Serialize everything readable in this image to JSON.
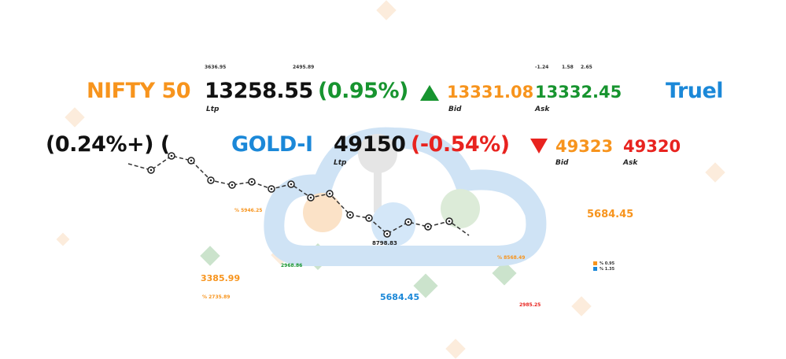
{
  "colors": {
    "orange": "#f7941d",
    "green": "#17942f",
    "red": "#e8231f",
    "blue": "#1b88d8",
    "black": "#111111"
  },
  "row1": {
    "top_numbers": [
      "3636.95",
      "2495.89",
      "-1.24",
      "1.58",
      "2.65"
    ],
    "symbol": "NIFTY 50",
    "ltp": "13258.55",
    "change": "(0.95%)",
    "direction_icon": "triangle-up-icon",
    "bid": "13331.08",
    "ask": "13332.45",
    "ltp_label": "Ltp",
    "bid_label": "Bid",
    "ask_label": "Ask",
    "next_symbol": "Truel"
  },
  "row2": {
    "prev_change": ") (+0.24%)",
    "symbol": "GOLD-I",
    "ltp": "49150",
    "change": "(-0.54%)",
    "direction_icon": "triangle-down-icon",
    "bid": "49323",
    "ask": "49320",
    "ltp_label": "Ltp",
    "bid_label": "Bid",
    "ask_label": "Ask"
  },
  "floating": {
    "low_label": "8798.83",
    "right_value": "5684.45",
    "left_value": "3385.99",
    "center_value": "5684.45",
    "pct1": "% 5946.25",
    "pct2": "2968.86",
    "pct3": "% 2735.89",
    "pct4": "% 8568.49",
    "pct5": "2985.25"
  },
  "legend": [
    {
      "label": "% 0.95",
      "color": "#f7941d"
    },
    {
      "label": "% 1.35",
      "color": "#1b88d8"
    }
  ]
}
